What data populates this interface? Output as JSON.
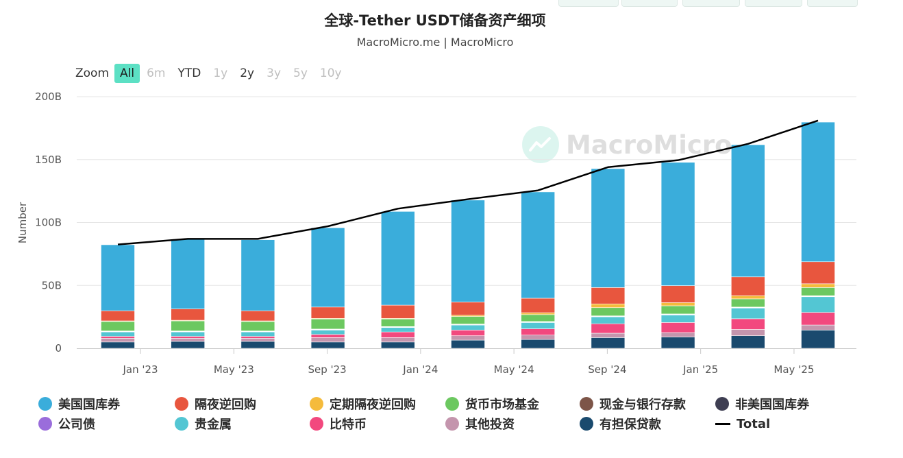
{
  "title": "全球-Tether USDT储备资产细项",
  "subtitle": "MacroMicro.me | MacroMicro",
  "watermark": "MacroMicro",
  "zoom": {
    "label": "Zoom",
    "buttons": [
      {
        "label": "All",
        "state": "active"
      },
      {
        "label": "6m",
        "state": "disabled"
      },
      {
        "label": "YTD",
        "state": "enabled"
      },
      {
        "label": "1y",
        "state": "disabled"
      },
      {
        "label": "2y",
        "state": "enabled"
      },
      {
        "label": "3y",
        "state": "disabled"
      },
      {
        "label": "5y",
        "state": "disabled"
      },
      {
        "label": "10y",
        "state": "disabled"
      }
    ]
  },
  "chart_data": {
    "type": "bar",
    "stacked": true,
    "title": "全球-Tether USDT储备资产细项",
    "subtitle": "MacroMicro.me | MacroMicro",
    "xlabel": "",
    "ylabel": "Number",
    "ylim": [
      0,
      200
    ],
    "yticks": [
      "0",
      "50B",
      "100B",
      "150B",
      "200B"
    ],
    "xticks": [
      "Jan '23",
      "May '23",
      "Sep '23",
      "Jan '24",
      "May '24",
      "Sep '24",
      "Jan '25",
      "May '25"
    ],
    "categories": [
      "2022-12",
      "2023-03",
      "2023-06",
      "2023-09",
      "2023-12",
      "2024-03",
      "2024-06",
      "2024-09",
      "2024-12",
      "2025-03",
      "2025-06"
    ],
    "grid": true,
    "legend_position": "bottom",
    "series": [
      {
        "name": "有担保贷款",
        "color": "#1a4a6e",
        "values": [
          5,
          5.5,
          5.5,
          5,
          5,
          6.5,
          7,
          8.5,
          9,
          10,
          14.5
        ]
      },
      {
        "name": "其他投资",
        "color": "#c495ad",
        "values": [
          3,
          2.5,
          2.5,
          3.5,
          3.5,
          3.5,
          3.5,
          3.5,
          3.5,
          5,
          4
        ]
      },
      {
        "name": "比特币",
        "color": "#f2487e",
        "values": [
          1.5,
          1.5,
          1.5,
          2.5,
          4.5,
          4.5,
          5,
          7.5,
          8,
          8.5,
          10
        ]
      },
      {
        "name": "贵金属",
        "color": "#53c6d3",
        "values": [
          3.5,
          3.5,
          3.5,
          3.5,
          3.5,
          4,
          5,
          5.5,
          6,
          8.5,
          12.5
        ]
      },
      {
        "name": "公司债",
        "color": "#9a6ddb",
        "values": [
          0.2,
          0.2,
          0.2,
          0.2,
          0.2,
          0.2,
          0.2,
          0.2,
          0.2,
          0.2,
          0.2
        ]
      },
      {
        "name": "非美国国库券",
        "color": "#3e3e52",
        "values": [
          0.3,
          0.3,
          0.3,
          0.3,
          0.3,
          0.3,
          0.3,
          0.3,
          0.3,
          0.3,
          0.3
        ]
      },
      {
        "name": "现金与银行存款",
        "color": "#7d5548",
        "values": [
          0.3,
          0.3,
          0.3,
          0.3,
          0.3,
          0.3,
          0.3,
          0.3,
          0.3,
          0.3,
          0.3
        ]
      },
      {
        "name": "货币市场基金",
        "color": "#6cc860",
        "values": [
          7.5,
          8,
          7.5,
          8,
          6,
          6,
          5.5,
          6.5,
          6.5,
          6.5,
          6.5
        ]
      },
      {
        "name": "定期隔夜逆回购",
        "color": "#f5bb3c",
        "values": [
          0.5,
          0.5,
          0.5,
          0.5,
          0.5,
          1,
          1.5,
          3,
          2.5,
          2.5,
          3
        ]
      },
      {
        "name": "隔夜逆回购",
        "color": "#e8563e",
        "values": [
          8,
          9,
          8,
          9,
          10.5,
          10.5,
          11.5,
          13,
          13.5,
          15,
          17.5
        ]
      },
      {
        "name": "美国国库券",
        "color": "#3aaddb",
        "values": [
          52.5,
          55.5,
          56.5,
          63,
          74.5,
          81,
          84.5,
          94.5,
          98,
          105,
          111
        ]
      }
    ],
    "total": {
      "name": "Total",
      "color": "#000000",
      "values": [
        82.5,
        87,
        87,
        97,
        111,
        118.5,
        125.5,
        144,
        149.5,
        162.5,
        181
      ]
    }
  },
  "legend": [
    {
      "label": "美国国库券",
      "color": "#3aaddb",
      "marker": "circle"
    },
    {
      "label": "隔夜逆回购",
      "color": "#e8563e",
      "marker": "circle"
    },
    {
      "label": "定期隔夜逆回购",
      "color": "#f5bb3c",
      "marker": "circle"
    },
    {
      "label": "货币市场基金",
      "color": "#6cc860",
      "marker": "circle"
    },
    {
      "label": "现金与银行存款",
      "color": "#7d5548",
      "marker": "circle"
    },
    {
      "label": "非美国国库券",
      "color": "#3e3e52",
      "marker": "circle"
    },
    {
      "label": "公司债",
      "color": "#9a6ddb",
      "marker": "circle"
    },
    {
      "label": "贵金属",
      "color": "#53c6d3",
      "marker": "circle"
    },
    {
      "label": "比特币",
      "color": "#f2487e",
      "marker": "circle"
    },
    {
      "label": "其他投资",
      "color": "#c495ad",
      "marker": "circle"
    },
    {
      "label": "有担保贷款",
      "color": "#1a4a6e",
      "marker": "circle"
    },
    {
      "label": "Total",
      "color": "#000000",
      "marker": "line"
    }
  ]
}
